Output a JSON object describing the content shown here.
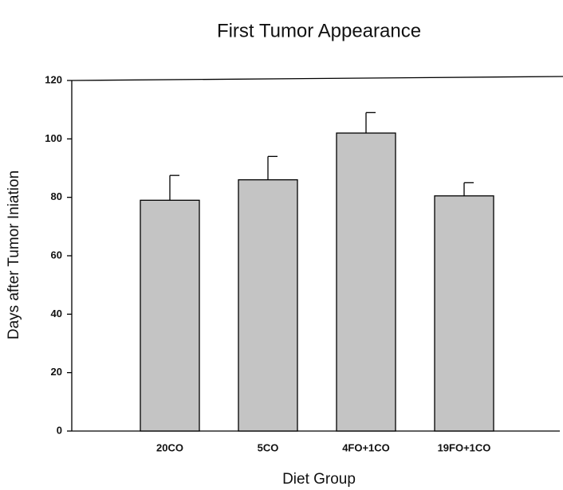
{
  "chart_data": {
    "type": "bar",
    "title": "First Tumor Appearance",
    "x_label": "Diet Group",
    "y_label": "Days after Tumor Iniation",
    "categories": [
      "20CO",
      "5CO",
      "4FO+1CO",
      "19FO+1CO"
    ],
    "values": [
      79,
      86,
      102,
      80.5
    ],
    "errors": [
      8.5,
      8,
      7,
      4.5
    ],
    "color": "#c4c4c4",
    "ylim": [
      0,
      120
    ],
    "yticks": [
      0,
      20,
      40,
      60,
      80,
      100,
      120
    ],
    "grid": false
  }
}
